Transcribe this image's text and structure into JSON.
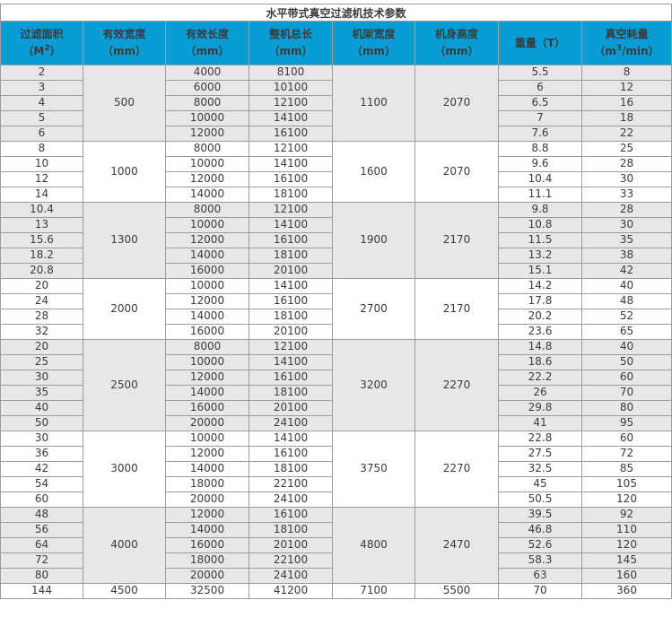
{
  "title": "水平带式真空过滤机技术参数",
  "header": {
    "columns": [
      {
        "pre": "过滤面积（M",
        "sup": "2",
        "post": "）"
      },
      {
        "pre": "有效宽度（mm）",
        "sup": "",
        "post": ""
      },
      {
        "pre": "有效长度（mm）",
        "sup": "",
        "post": ""
      },
      {
        "pre": "整机总长（mm）",
        "sup": "",
        "post": ""
      },
      {
        "pre": "机架宽度（mm）",
        "sup": "",
        "post": ""
      },
      {
        "pre": "机身高度（mm）",
        "sup": "",
        "post": ""
      },
      {
        "pre": "重量（T）",
        "sup": "",
        "post": ""
      },
      {
        "pre": "真空耗量（m",
        "sup": "3",
        "post": "/min）"
      }
    ]
  },
  "colors": {
    "header_bg": "#0a9dd5",
    "header_text": "#ffffff",
    "group_shade": "#e7e7e7",
    "border": "#9c9c9c",
    "text": "#3b3b3b"
  },
  "groups": [
    {
      "effective_width": "500",
      "shaded": true,
      "frame_width": "1100",
      "body_height": "2070",
      "rows": [
        {
          "area": "2",
          "length": "4000",
          "total": "8100",
          "weight": "5.5",
          "vacuum": "8"
        },
        {
          "area": "3",
          "length": "6000",
          "total": "10100",
          "weight": "6",
          "vacuum": "12"
        },
        {
          "area": "4",
          "length": "8000",
          "total": "12100",
          "weight": "6.5",
          "vacuum": "16"
        },
        {
          "area": "5",
          "length": "10000",
          "total": "14100",
          "weight": "7",
          "vacuum": "18"
        },
        {
          "area": "6",
          "length": "12000",
          "total": "16100",
          "weight": "7.6",
          "vacuum": "22"
        }
      ]
    },
    {
      "effective_width": "1000",
      "shaded": false,
      "frame_width": "1600",
      "body_height": "2070",
      "rows": [
        {
          "area": "8",
          "length": "8000",
          "total": "12100",
          "weight": "8.8",
          "vacuum": "25"
        },
        {
          "area": "10",
          "length": "10000",
          "total": "14100",
          "weight": "9.6",
          "vacuum": "28"
        },
        {
          "area": "12",
          "length": "12000",
          "total": "16100",
          "weight": "10.4",
          "vacuum": "30"
        },
        {
          "area": "14",
          "length": "14000",
          "total": "18100",
          "weight": "11.1",
          "vacuum": "33"
        }
      ]
    },
    {
      "effective_width": "1300",
      "shaded": true,
      "frame_width": "1900",
      "body_height": "2170",
      "rows": [
        {
          "area": "10.4",
          "length": "8000",
          "total": "12100",
          "weight": "9.8",
          "vacuum": "28"
        },
        {
          "area": "13",
          "length": "10000",
          "total": "14100",
          "weight": "10.8",
          "vacuum": "30"
        },
        {
          "area": "15.6",
          "length": "12000",
          "total": "16100",
          "weight": "11.5",
          "vacuum": "35"
        },
        {
          "area": "18.2",
          "length": "14000",
          "total": "18100",
          "weight": "13.2",
          "vacuum": "38"
        },
        {
          "area": "20.8",
          "length": "16000",
          "total": "20100",
          "weight": "15.1",
          "vacuum": "42"
        }
      ]
    },
    {
      "effective_width": "2000",
      "shaded": false,
      "frame_width": "2700",
      "body_height": "2170",
      "rows": [
        {
          "area": "20",
          "length": "10000",
          "total": "14100",
          "weight": "14.2",
          "vacuum": "40"
        },
        {
          "area": "24",
          "length": "12000",
          "total": "16100",
          "weight": "17.8",
          "vacuum": "48"
        },
        {
          "area": "28",
          "length": "14000",
          "total": "18100",
          "weight": "20.2",
          "vacuum": "52"
        },
        {
          "area": "32",
          "length": "16000",
          "total": "20100",
          "weight": "23.6",
          "vacuum": "65"
        }
      ]
    },
    {
      "effective_width": "2500",
      "shaded": true,
      "frame_width": "3200",
      "body_height": "2270",
      "rows": [
        {
          "area": "20",
          "length": "8000",
          "total": "12100",
          "weight": "14.8",
          "vacuum": "40"
        },
        {
          "area": "25",
          "length": "10000",
          "total": "14100",
          "weight": "18.6",
          "vacuum": "50"
        },
        {
          "area": "30",
          "length": "12000",
          "total": "16100",
          "weight": "22.2",
          "vacuum": "60"
        },
        {
          "area": "35",
          "length": "14000",
          "total": "18100",
          "weight": "26",
          "vacuum": "70"
        },
        {
          "area": "40",
          "length": "16000",
          "total": "20100",
          "weight": "29.8",
          "vacuum": "80"
        },
        {
          "area": "50",
          "length": "20000",
          "total": "24100",
          "weight": "41",
          "vacuum": "95"
        }
      ]
    },
    {
      "effective_width": "3000",
      "shaded": false,
      "frame_width": "3750",
      "body_height": "2270",
      "rows": [
        {
          "area": "30",
          "length": "10000",
          "total": "14100",
          "weight": "22.8",
          "vacuum": "60"
        },
        {
          "area": "36",
          "length": "12000",
          "total": "16100",
          "weight": "27.5",
          "vacuum": "72"
        },
        {
          "area": "42",
          "length": "14000",
          "total": "18100",
          "weight": "32.5",
          "vacuum": "85"
        },
        {
          "area": "54",
          "length": "18000",
          "total": "22100",
          "weight": "45",
          "vacuum": "105"
        },
        {
          "area": "60",
          "length": "20000",
          "total": "24100",
          "weight": "50.5",
          "vacuum": "120"
        }
      ]
    },
    {
      "effective_width": "4000",
      "shaded": true,
      "frame_width": "4800",
      "body_height": "2470",
      "rows": [
        {
          "area": "48",
          "length": "12000",
          "total": "16100",
          "weight": "39.5",
          "vacuum": "92"
        },
        {
          "area": "56",
          "length": "14000",
          "total": "18100",
          "weight": "46.8",
          "vacuum": "110"
        },
        {
          "area": "64",
          "length": "16000",
          "total": "20100",
          "weight": "52.6",
          "vacuum": "120"
        },
        {
          "area": "72",
          "length": "18000",
          "total": "22100",
          "weight": "58.3",
          "vacuum": "145"
        },
        {
          "area": "80",
          "length": "20000",
          "total": "24100",
          "weight": "63",
          "vacuum": "160"
        }
      ]
    },
    {
      "effective_width": "4500",
      "shaded": false,
      "frame_width": "7100",
      "body_height": "5500",
      "rows": [
        {
          "area": "144",
          "length": "32500",
          "total": "41200",
          "weight": "70",
          "vacuum": "360"
        }
      ]
    }
  ]
}
